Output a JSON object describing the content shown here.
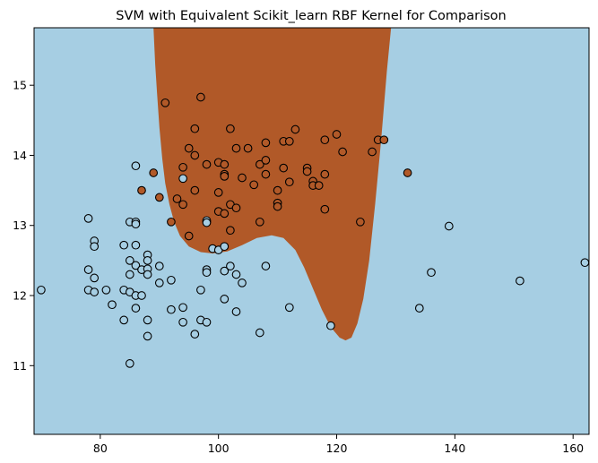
{
  "chart_data": {
    "type": "scatter",
    "title": "SVM with Equivalent Scikit_learn RBF Kernel for Comparison",
    "xlabel": "",
    "ylabel": "",
    "xlim": [
      68.8,
      162.7
    ],
    "ylim": [
      10.02,
      15.82
    ],
    "xticks": [
      80,
      100,
      120,
      140,
      160
    ],
    "yticks": [
      11,
      12,
      13,
      14,
      15
    ],
    "grid": false,
    "legend": "none",
    "colors": {
      "region_class_0": "#a6cee3",
      "region_class_1": "#b15928",
      "point_class_0": "#a6cee3",
      "point_class_1": "#b15928",
      "edge": "#000000"
    },
    "decision_boundary": [
      [
        89.0,
        15.82
      ],
      [
        89.3,
        15.3
      ],
      [
        89.6,
        14.9
      ],
      [
        90.0,
        14.4
      ],
      [
        90.5,
        13.95
      ],
      [
        91.0,
        13.6
      ],
      [
        91.7,
        13.3
      ],
      [
        92.5,
        13.05
      ],
      [
        93.5,
        12.85
      ],
      [
        95.0,
        12.7
      ],
      [
        97.0,
        12.62
      ],
      [
        99.0,
        12.6
      ],
      [
        101.5,
        12.63
      ],
      [
        104.0,
        12.72
      ],
      [
        106.5,
        12.82
      ],
      [
        109.0,
        12.86
      ],
      [
        111.0,
        12.82
      ],
      [
        113.0,
        12.65
      ],
      [
        114.5,
        12.4
      ],
      [
        116.0,
        12.1
      ],
      [
        117.5,
        11.8
      ],
      [
        119.0,
        11.55
      ],
      [
        120.5,
        11.4
      ],
      [
        121.5,
        11.36
      ],
      [
        122.5,
        11.4
      ],
      [
        123.5,
        11.6
      ],
      [
        124.5,
        11.95
      ],
      [
        125.5,
        12.5
      ],
      [
        126.5,
        13.3
      ],
      [
        127.5,
        14.2
      ],
      [
        128.5,
        15.2
      ],
      [
        129.2,
        15.82
      ]
    ],
    "series": [
      {
        "class": 1,
        "points": [
          [
            91,
            14.75
          ],
          [
            97,
            14.83
          ],
          [
            96,
            14.38
          ],
          [
            102,
            14.38
          ],
          [
            95,
            14.1
          ],
          [
            96,
            14.0
          ],
          [
            100,
            13.9
          ],
          [
            101,
            13.87
          ],
          [
            103,
            14.1
          ],
          [
            105,
            14.1
          ],
          [
            108,
            14.18
          ],
          [
            111,
            14.2
          ],
          [
            112,
            14.2
          ],
          [
            113,
            14.37
          ],
          [
            118,
            14.22
          ],
          [
            120,
            14.3
          ],
          [
            121,
            14.05
          ],
          [
            126,
            14.05
          ],
          [
            127,
            14.22
          ],
          [
            128,
            14.22
          ],
          [
            132,
            13.75
          ],
          [
            89,
            13.75
          ],
          [
            94,
            13.83
          ],
          [
            98,
            13.87
          ],
          [
            101,
            13.73
          ],
          [
            101,
            13.7
          ],
          [
            104,
            13.68
          ],
          [
            106,
            13.58
          ],
          [
            107,
            13.87
          ],
          [
            108,
            13.93
          ],
          [
            108,
            13.73
          ],
          [
            110,
            13.5
          ],
          [
            111,
            13.82
          ],
          [
            112,
            13.62
          ],
          [
            115,
            13.82
          ],
          [
            115,
            13.77
          ],
          [
            116,
            13.63
          ],
          [
            116,
            13.57
          ],
          [
            117,
            13.57
          ],
          [
            118,
            13.73
          ],
          [
            87,
            13.5
          ],
          [
            90,
            13.4
          ],
          [
            93,
            13.38
          ],
          [
            94,
            13.3
          ],
          [
            96,
            13.5
          ],
          [
            100,
            13.47
          ],
          [
            102,
            13.3
          ],
          [
            100,
            13.2
          ],
          [
            101,
            13.17
          ],
          [
            103,
            13.25
          ],
          [
            110,
            13.32
          ],
          [
            110,
            13.27
          ],
          [
            92,
            13.05
          ],
          [
            98,
            13.05
          ],
          [
            107,
            13.05
          ],
          [
            95,
            12.85
          ],
          [
            102,
            12.93
          ],
          [
            118,
            13.23
          ],
          [
            124,
            13.05
          ]
        ]
      },
      {
        "class": 0,
        "points": [
          [
            94,
            13.67
          ],
          [
            86,
            13.85
          ],
          [
            78,
            13.1
          ],
          [
            85,
            13.05
          ],
          [
            86,
            13.05
          ],
          [
            86,
            13.02
          ],
          [
            98,
            13.07
          ],
          [
            98,
            13.04
          ],
          [
            79,
            12.78
          ],
          [
            79,
            12.7
          ],
          [
            84,
            12.72
          ],
          [
            86,
            12.72
          ],
          [
            88,
            12.58
          ],
          [
            88,
            12.5
          ],
          [
            85,
            12.5
          ],
          [
            86,
            12.43
          ],
          [
            87,
            12.37
          ],
          [
            88,
            12.38
          ],
          [
            88,
            12.3
          ],
          [
            90,
            12.42
          ],
          [
            99,
            12.67
          ],
          [
            100,
            12.65
          ],
          [
            101,
            12.7
          ],
          [
            78,
            12.37
          ],
          [
            79,
            12.25
          ],
          [
            85,
            12.3
          ],
          [
            90,
            12.18
          ],
          [
            92,
            12.22
          ],
          [
            98,
            12.37
          ],
          [
            98,
            12.33
          ],
          [
            101,
            12.35
          ],
          [
            102,
            12.42
          ],
          [
            103,
            12.3
          ],
          [
            104,
            12.18
          ],
          [
            108,
            12.42
          ],
          [
            136,
            12.33
          ],
          [
            151,
            12.21
          ],
          [
            162,
            12.47
          ],
          [
            70,
            12.08
          ],
          [
            78,
            12.08
          ],
          [
            79,
            12.05
          ],
          [
            81,
            12.08
          ],
          [
            84,
            12.08
          ],
          [
            85,
            12.05
          ],
          [
            86,
            12.0
          ],
          [
            87,
            12.0
          ],
          [
            97,
            12.08
          ],
          [
            101,
            11.95
          ],
          [
            82,
            11.87
          ],
          [
            86,
            11.82
          ],
          [
            92,
            11.8
          ],
          [
            94,
            11.83
          ],
          [
            103,
            11.77
          ],
          [
            112,
            11.83
          ],
          [
            84,
            11.65
          ],
          [
            88,
            11.65
          ],
          [
            94,
            11.62
          ],
          [
            97,
            11.65
          ],
          [
            98,
            11.62
          ],
          [
            119,
            11.57
          ],
          [
            88,
            11.42
          ],
          [
            96,
            11.45
          ],
          [
            107,
            11.47
          ],
          [
            134,
            11.82
          ],
          [
            139,
            12.99
          ],
          [
            85,
            11.03
          ]
        ]
      }
    ]
  }
}
